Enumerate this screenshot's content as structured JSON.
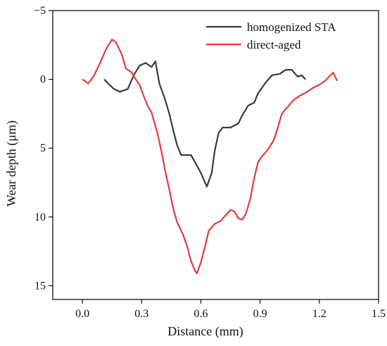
{
  "chart_data": {
    "type": "line",
    "title": "",
    "xlabel": "Distance (mm)",
    "ylabel": "Wear depth (μm)",
    "xlim": [
      -0.15,
      1.5
    ],
    "ylim": [
      -5,
      16
    ],
    "y_inverted": true,
    "x_ticks": [
      0.0,
      0.3,
      0.6,
      0.9,
      1.2,
      1.5
    ],
    "x_tick_labels": [
      "0.0",
      "0.3",
      "0.6",
      "0.9",
      "1.2",
      "1.5"
    ],
    "y_ticks": [
      -5,
      0,
      5,
      10,
      15
    ],
    "y_tick_labels": [
      "−5",
      "0",
      "5",
      "10",
      "15"
    ],
    "grid": false,
    "legend_position": "top-right",
    "series": [
      {
        "name": "homogenized STA",
        "color": "#3a3a3a",
        "points": [
          [
            0.11,
            0.0
          ],
          [
            0.13,
            0.3
          ],
          [
            0.16,
            0.7
          ],
          [
            0.19,
            0.9
          ],
          [
            0.23,
            0.7
          ],
          [
            0.26,
            -0.3
          ],
          [
            0.29,
            -1.0
          ],
          [
            0.32,
            -1.2
          ],
          [
            0.35,
            -0.9
          ],
          [
            0.37,
            -1.3
          ],
          [
            0.39,
            0.3
          ],
          [
            0.42,
            1.5
          ],
          [
            0.44,
            2.5
          ],
          [
            0.46,
            3.7
          ],
          [
            0.48,
            4.8
          ],
          [
            0.5,
            5.5
          ],
          [
            0.55,
            5.5
          ],
          [
            0.57,
            6.0
          ],
          [
            0.6,
            6.8
          ],
          [
            0.63,
            7.8
          ],
          [
            0.655,
            6.8
          ],
          [
            0.67,
            5.2
          ],
          [
            0.69,
            3.9
          ],
          [
            0.71,
            3.5
          ],
          [
            0.75,
            3.5
          ],
          [
            0.79,
            3.2
          ],
          [
            0.81,
            2.6
          ],
          [
            0.84,
            1.9
          ],
          [
            0.87,
            1.7
          ],
          [
            0.89,
            1.0
          ],
          [
            0.93,
            0.2
          ],
          [
            0.96,
            -0.3
          ],
          [
            1.0,
            -0.4
          ],
          [
            1.03,
            -0.7
          ],
          [
            1.06,
            -0.7
          ],
          [
            1.09,
            -0.2
          ],
          [
            1.11,
            -0.3
          ],
          [
            1.13,
            0.0
          ]
        ]
      },
      {
        "name": "direct-aged",
        "color": "#e03c3c",
        "points": [
          [
            0.0,
            0.0
          ],
          [
            0.03,
            0.3
          ],
          [
            0.06,
            -0.3
          ],
          [
            0.09,
            -1.2
          ],
          [
            0.12,
            -2.2
          ],
          [
            0.15,
            -2.9
          ],
          [
            0.17,
            -2.7
          ],
          [
            0.2,
            -1.8
          ],
          [
            0.22,
            -0.8
          ],
          [
            0.25,
            -0.5
          ],
          [
            0.27,
            0.0
          ],
          [
            0.29,
            0.4
          ],
          [
            0.31,
            1.2
          ],
          [
            0.33,
            1.9
          ],
          [
            0.35,
            2.4
          ],
          [
            0.38,
            3.9
          ],
          [
            0.4,
            5.2
          ],
          [
            0.42,
            6.7
          ],
          [
            0.44,
            8.0
          ],
          [
            0.46,
            9.4
          ],
          [
            0.48,
            10.4
          ],
          [
            0.51,
            11.3
          ],
          [
            0.53,
            12.1
          ],
          [
            0.55,
            13.2
          ],
          [
            0.57,
            13.9
          ],
          [
            0.58,
            14.1
          ],
          [
            0.6,
            13.3
          ],
          [
            0.62,
            12.2
          ],
          [
            0.64,
            11.0
          ],
          [
            0.67,
            10.5
          ],
          [
            0.7,
            10.3
          ],
          [
            0.73,
            9.8
          ],
          [
            0.75,
            9.5
          ],
          [
            0.77,
            9.6
          ],
          [
            0.79,
            10.1
          ],
          [
            0.81,
            10.2
          ],
          [
            0.83,
            9.7
          ],
          [
            0.85,
            8.7
          ],
          [
            0.87,
            7.2
          ],
          [
            0.89,
            6.0
          ],
          [
            0.91,
            5.6
          ],
          [
            0.94,
            5.1
          ],
          [
            0.97,
            4.4
          ],
          [
            0.99,
            3.5
          ],
          [
            1.01,
            2.5
          ],
          [
            1.04,
            2.0
          ],
          [
            1.07,
            1.5
          ],
          [
            1.1,
            1.2
          ],
          [
            1.14,
            0.9
          ],
          [
            1.17,
            0.6
          ],
          [
            1.2,
            0.4
          ],
          [
            1.23,
            0.1
          ],
          [
            1.25,
            -0.2
          ],
          [
            1.27,
            -0.5
          ],
          [
            1.29,
            0.1
          ]
        ]
      }
    ]
  }
}
